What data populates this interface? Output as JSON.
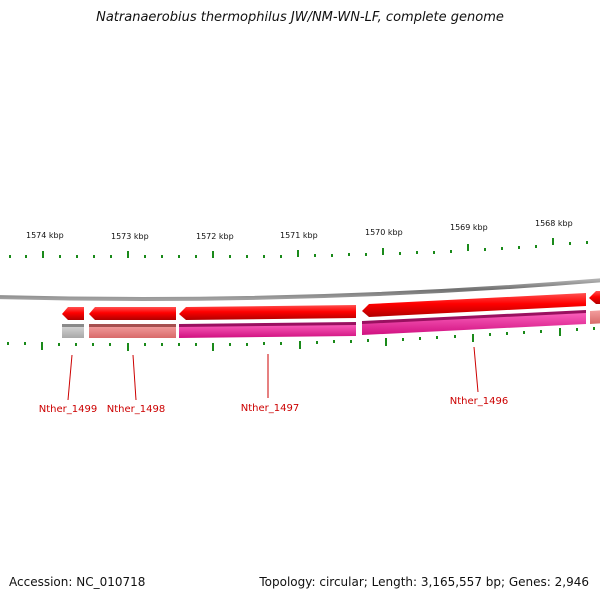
{
  "title": "Natranaerobius thermophilus JW/NM-WN-LF, complete genome",
  "footer": {
    "accession": "Accession: NC_010718",
    "stats": "Topology: circular; Length: 3,165,557 bp; Genes: 2,946"
  },
  "colors": {
    "backbone": "#8c8c8c",
    "tick": "#1a8a1a",
    "cds": "#ff0000",
    "gene_label": "#cc0000",
    "feature_grey": "#b8b8b8",
    "feature_salmon": "#e88080",
    "feature_magenta": "#ee2299"
  },
  "scale_labels": [
    "1574 kbp",
    "1573 kbp",
    "1572 kbp",
    "1571 kbp",
    "1570 kbp",
    "1569 kbp",
    "1568 kbp"
  ],
  "genes": [
    {
      "name": "Nther_1499",
      "strand": "-",
      "lower_color": "grey"
    },
    {
      "name": "Nther_1498",
      "strand": "-",
      "lower_color": "salmon"
    },
    {
      "name": "Nther_1497",
      "strand": "-",
      "lower_color": "magenta"
    },
    {
      "name": "Nther_1496",
      "strand": "-",
      "lower_color": "magenta"
    }
  ]
}
